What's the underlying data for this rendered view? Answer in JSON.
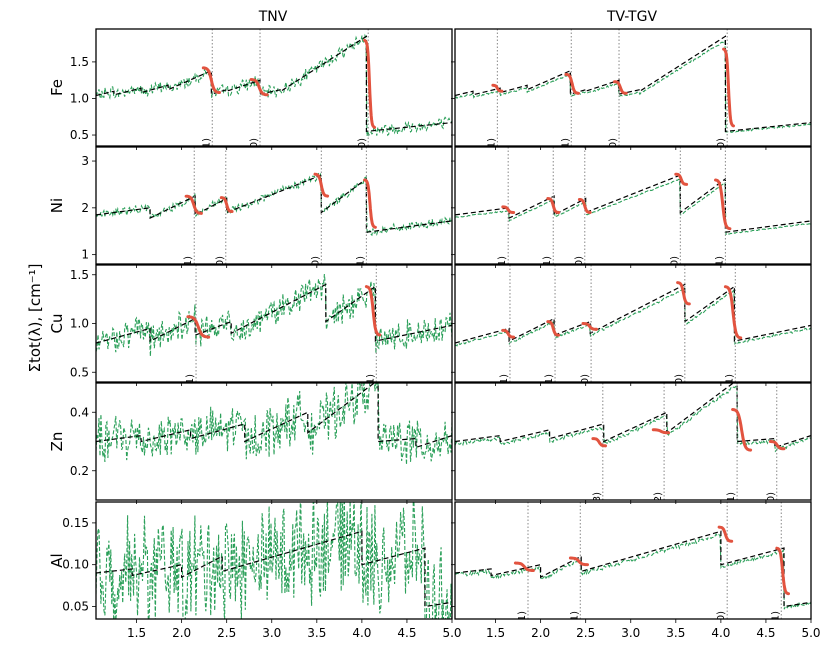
{
  "figure": {
    "ylabel": "Σtot(λ), [cm⁻¹]",
    "xlim": [
      1.05,
      5.0
    ],
    "xticks": [
      1.5,
      2.0,
      2.5,
      3.0,
      3.5,
      4.0,
      4.5,
      5.0
    ],
    "xtick_labels": [
      "1.5",
      "2.0",
      "2.5",
      "3.0",
      "3.5",
      "4.0",
      "4.5",
      "5.0"
    ],
    "columns": [
      "TNV",
      "TV-TGV"
    ],
    "colors": {
      "exp": "#2ca05a",
      "theory": "#000000",
      "fit": "#e2533f",
      "edge": "#888888"
    }
  },
  "chart_data": [
    {
      "type": "line",
      "row": "Fe",
      "ylim": [
        0.35,
        1.95
      ],
      "yticks": [
        0.5,
        1.0,
        1.5
      ],
      "ytick_labels": [
        "0.5",
        "1.0",
        "1.5"
      ],
      "theory": [
        [
          1.05,
          1.04
        ],
        [
          1.25,
          1.1
        ],
        [
          1.25,
          1.05
        ],
        [
          1.55,
          1.14
        ],
        [
          1.55,
          1.08
        ],
        [
          1.85,
          1.18
        ],
        [
          1.85,
          1.12
        ],
        [
          2.33,
          1.38
        ],
        [
          2.33,
          1.06
        ],
        [
          2.5,
          1.12
        ],
        [
          2.5,
          1.1
        ],
        [
          2.87,
          1.25
        ],
        [
          2.87,
          1.06
        ],
        [
          3.1,
          1.12
        ],
        [
          3.1,
          1.1
        ],
        [
          4.05,
          1.85
        ],
        [
          4.05,
          0.55
        ],
        [
          5.0,
          0.67
        ]
      ],
      "edges": [
        {
          "x": 2.34,
          "hkl": {
            "TNV": "(211)",
            "TV-TGV": "(211)"
          }
        },
        {
          "x": 2.87,
          "hkl": {
            "TNV": "(200)",
            "TV-TGV": "(200)"
          }
        },
        {
          "x": 4.07,
          "hkl": {
            "TNV": "(110)",
            "TV-TGV": "(110)"
          }
        },
        {
          "x": 1.52,
          "hkl": {
            "TV-TGV": "(321)"
          }
        }
      ],
      "TNV": {
        "noise": 0.07,
        "fits": [
          {
            "x0": 2.24,
            "x1": 2.42,
            "yTop": 1.42,
            "yBot": 1.08
          },
          {
            "x0": 2.77,
            "x1": 2.95,
            "yTop": 1.26,
            "yBot": 1.05
          },
          {
            "x0": 4.03,
            "x1": 4.14,
            "yTop": 1.8,
            "yBot": 0.6
          }
        ]
      },
      "TV-TGV": {
        "noise": 0.01,
        "fits": [
          {
            "x0": 1.47,
            "x1": 1.57,
            "yTop": 1.18,
            "yBot": 1.1
          },
          {
            "x0": 2.28,
            "x1": 2.42,
            "yTop": 1.33,
            "yBot": 1.07
          },
          {
            "x0": 2.82,
            "x1": 2.95,
            "yTop": 1.23,
            "yBot": 1.07
          },
          {
            "x0": 4.03,
            "x1": 4.14,
            "yTop": 1.68,
            "yBot": 0.62
          }
        ]
      }
    },
    {
      "type": "line",
      "row": "Ni",
      "ylim": [
        0.8,
        3.3
      ],
      "yticks": [
        1,
        2,
        3
      ],
      "ytick_labels": [
        "1",
        "2",
        "3"
      ],
      "theory": [
        [
          1.05,
          1.85
        ],
        [
          1.65,
          2.0
        ],
        [
          1.65,
          1.78
        ],
        [
          2.15,
          2.25
        ],
        [
          2.15,
          1.85
        ],
        [
          2.5,
          2.2
        ],
        [
          2.5,
          1.9
        ],
        [
          3.55,
          2.7
        ],
        [
          3.55,
          1.9
        ],
        [
          4.05,
          2.62
        ],
        [
          4.05,
          1.48
        ],
        [
          5.0,
          1.72
        ]
      ],
      "edges": [
        {
          "x": 2.14,
          "hkl": {
            "TNV": "(311)",
            "TV-TGV": "(311)"
          }
        },
        {
          "x": 2.49,
          "hkl": {
            "TNV": "(220)",
            "TV-TGV": "(220)"
          }
        },
        {
          "x": 3.55,
          "hkl": {
            "TNV": "(200)",
            "TV-TGV": "(200)"
          }
        },
        {
          "x": 4.05,
          "hkl": {
            "TNV": "(111)",
            "TV-TGV": "(111)"
          }
        },
        {
          "x": 1.64,
          "hkl": {
            "TV-TGV": "(331)"
          }
        }
      ],
      "TNV": {
        "noise": 0.07,
        "fits": [
          {
            "x0": 2.05,
            "x1": 2.22,
            "yTop": 2.25,
            "yBot": 1.88
          },
          {
            "x0": 2.44,
            "x1": 2.56,
            "yTop": 2.22,
            "yBot": 1.92
          },
          {
            "x0": 3.48,
            "x1": 3.62,
            "yTop": 2.72,
            "yBot": 2.25
          },
          {
            "x0": 4.03,
            "x1": 4.15,
            "yTop": 2.6,
            "yBot": 1.58
          }
        ]
      },
      "TV-TGV": {
        "noise": 0.01,
        "fits": [
          {
            "x0": 1.58,
            "x1": 1.7,
            "yTop": 2.02,
            "yBot": 1.9
          },
          {
            "x0": 2.08,
            "x1": 2.2,
            "yTop": 2.2,
            "yBot": 1.9
          },
          {
            "x0": 2.43,
            "x1": 2.55,
            "yTop": 2.18,
            "yBot": 1.9
          },
          {
            "x0": 3.5,
            "x1": 3.62,
            "yTop": 2.72,
            "yBot": 2.5
          },
          {
            "x0": 3.94,
            "x1": 4.1,
            "yTop": 2.6,
            "yBot": 1.55
          }
        ]
      }
    },
    {
      "type": "line",
      "row": "Cu",
      "ylim": [
        0.4,
        1.6
      ],
      "yticks": [
        0.5,
        1.0,
        1.5
      ],
      "ytick_labels": [
        "0.5",
        "1.0",
        "1.5"
      ],
      "theory": [
        [
          1.05,
          0.8
        ],
        [
          1.65,
          0.95
        ],
        [
          1.65,
          0.82
        ],
        [
          2.15,
          1.05
        ],
        [
          2.15,
          0.88
        ],
        [
          2.55,
          1.02
        ],
        [
          2.55,
          0.9
        ],
        [
          3.6,
          1.4
        ],
        [
          3.6,
          1.02
        ],
        [
          4.15,
          1.38
        ],
        [
          4.15,
          0.82
        ],
        [
          5.0,
          0.98
        ]
      ],
      "edges": [
        {
          "x": 2.16,
          "hkl": {
            "TNV": "(311)",
            "TV-TGV": "(311)"
          }
        },
        {
          "x": 4.16,
          "hkl": {
            "TNV": "(111)",
            "TV-TGV": "(111)"
          }
        },
        {
          "x": 1.66,
          "hkl": {
            "TV-TGV": "(331)"
          }
        },
        {
          "x": 2.56,
          "hkl": {
            "TV-TGV": "(220)"
          }
        },
        {
          "x": 3.6,
          "hkl": {
            "TV-TGV": "(200)"
          }
        }
      ],
      "TNV": {
        "noise": 0.12,
        "fits": [
          {
            "x0": 2.07,
            "x1": 2.3,
            "yTop": 1.07,
            "yBot": 0.86
          },
          {
            "x0": 4.05,
            "x1": 4.2,
            "yTop": 1.38,
            "yBot": 0.88
          }
        ]
      },
      "TV-TGV": {
        "noise": 0.01,
        "fits": [
          {
            "x0": 1.58,
            "x1": 1.7,
            "yTop": 0.93,
            "yBot": 0.86
          },
          {
            "x0": 2.08,
            "x1": 2.2,
            "yTop": 1.02,
            "yBot": 0.88
          },
          {
            "x0": 2.47,
            "x1": 2.62,
            "yTop": 1.0,
            "yBot": 0.94
          },
          {
            "x0": 3.52,
            "x1": 3.65,
            "yTop": 1.42,
            "yBot": 1.2
          },
          {
            "x0": 4.05,
            "x1": 4.22,
            "yTop": 1.38,
            "yBot": 0.85
          }
        ]
      }
    },
    {
      "type": "line",
      "row": "Zn",
      "ylim": [
        0.1,
        0.5
      ],
      "yticks": [
        0.2,
        0.4
      ],
      "ytick_labels": [
        "0.2",
        "0.4"
      ],
      "theory": [
        [
          1.05,
          0.3
        ],
        [
          1.55,
          0.32
        ],
        [
          1.55,
          0.3
        ],
        [
          2.1,
          0.34
        ],
        [
          2.1,
          0.31
        ],
        [
          2.7,
          0.36
        ],
        [
          2.7,
          0.3
        ],
        [
          3.4,
          0.4
        ],
        [
          3.4,
          0.33
        ],
        [
          4.18,
          0.51
        ],
        [
          4.18,
          0.3
        ],
        [
          4.6,
          0.31
        ],
        [
          4.6,
          0.28
        ],
        [
          5.0,
          0.32
        ]
      ],
      "edges": [
        {
          "x": 2.69,
          "hkl": {
            "TV-TGV": "(103)"
          }
        },
        {
          "x": 3.37,
          "hkl": {
            "TV-TGV": "(102)"
          }
        },
        {
          "x": 4.18,
          "hkl": {
            "TV-TGV": "(101)"
          }
        },
        {
          "x": 4.62,
          "hkl": {
            "TV-TGV": "(100)"
          }
        }
      ],
      "TNV": {
        "noise": 0.07,
        "fits": []
      },
      "TV-TGV": {
        "noise": 0.005,
        "fits": [
          {
            "x0": 2.58,
            "x1": 2.72,
            "yTop": 0.31,
            "yBot": 0.285
          },
          {
            "x0": 3.25,
            "x1": 3.42,
            "yTop": 0.34,
            "yBot": 0.33
          },
          {
            "x0": 4.13,
            "x1": 4.33,
            "yTop": 0.41,
            "yBot": 0.27
          },
          {
            "x0": 4.55,
            "x1": 4.7,
            "yTop": 0.3,
            "yBot": 0.275
          }
        ]
      }
    },
    {
      "type": "line",
      "row": "Al",
      "ylim": [
        0.035,
        0.175
      ],
      "yticks": [
        0.05,
        0.1,
        0.15
      ],
      "ytick_labels": [
        "0.05",
        "0.10",
        "0.15"
      ],
      "theory": [
        [
          1.05,
          0.09
        ],
        [
          1.45,
          0.095
        ],
        [
          1.45,
          0.087
        ],
        [
          2.0,
          0.1
        ],
        [
          2.0,
          0.085
        ],
        [
          2.45,
          0.11
        ],
        [
          2.45,
          0.092
        ],
        [
          4.0,
          0.14
        ],
        [
          4.0,
          0.1
        ],
        [
          4.7,
          0.12
        ],
        [
          4.7,
          0.05
        ],
        [
          5.0,
          0.055
        ]
      ],
      "edges": [
        {
          "x": 1.86,
          "hkl": {
            "TV-TGV": "(331)"
          }
        },
        {
          "x": 2.44,
          "hkl": {
            "TV-TGV": "(311)"
          }
        },
        {
          "x": 4.07,
          "hkl": {
            "TV-TGV": "(200)"
          }
        },
        {
          "x": 4.67,
          "hkl": {
            "TV-TGV": "(111)"
          }
        }
      ],
      "TNV": {
        "noise": 0.055,
        "fits": []
      },
      "TV-TGV": {
        "noise": 0.002,
        "fits": [
          {
            "x0": 1.72,
            "x1": 1.92,
            "yTop": 0.102,
            "yBot": 0.093
          },
          {
            "x0": 2.33,
            "x1": 2.52,
            "yTop": 0.108,
            "yBot": 0.1
          },
          {
            "x0": 3.98,
            "x1": 4.12,
            "yTop": 0.145,
            "yBot": 0.128
          },
          {
            "x0": 4.62,
            "x1": 4.75,
            "yTop": 0.12,
            "yBot": 0.065
          }
        ]
      }
    }
  ]
}
